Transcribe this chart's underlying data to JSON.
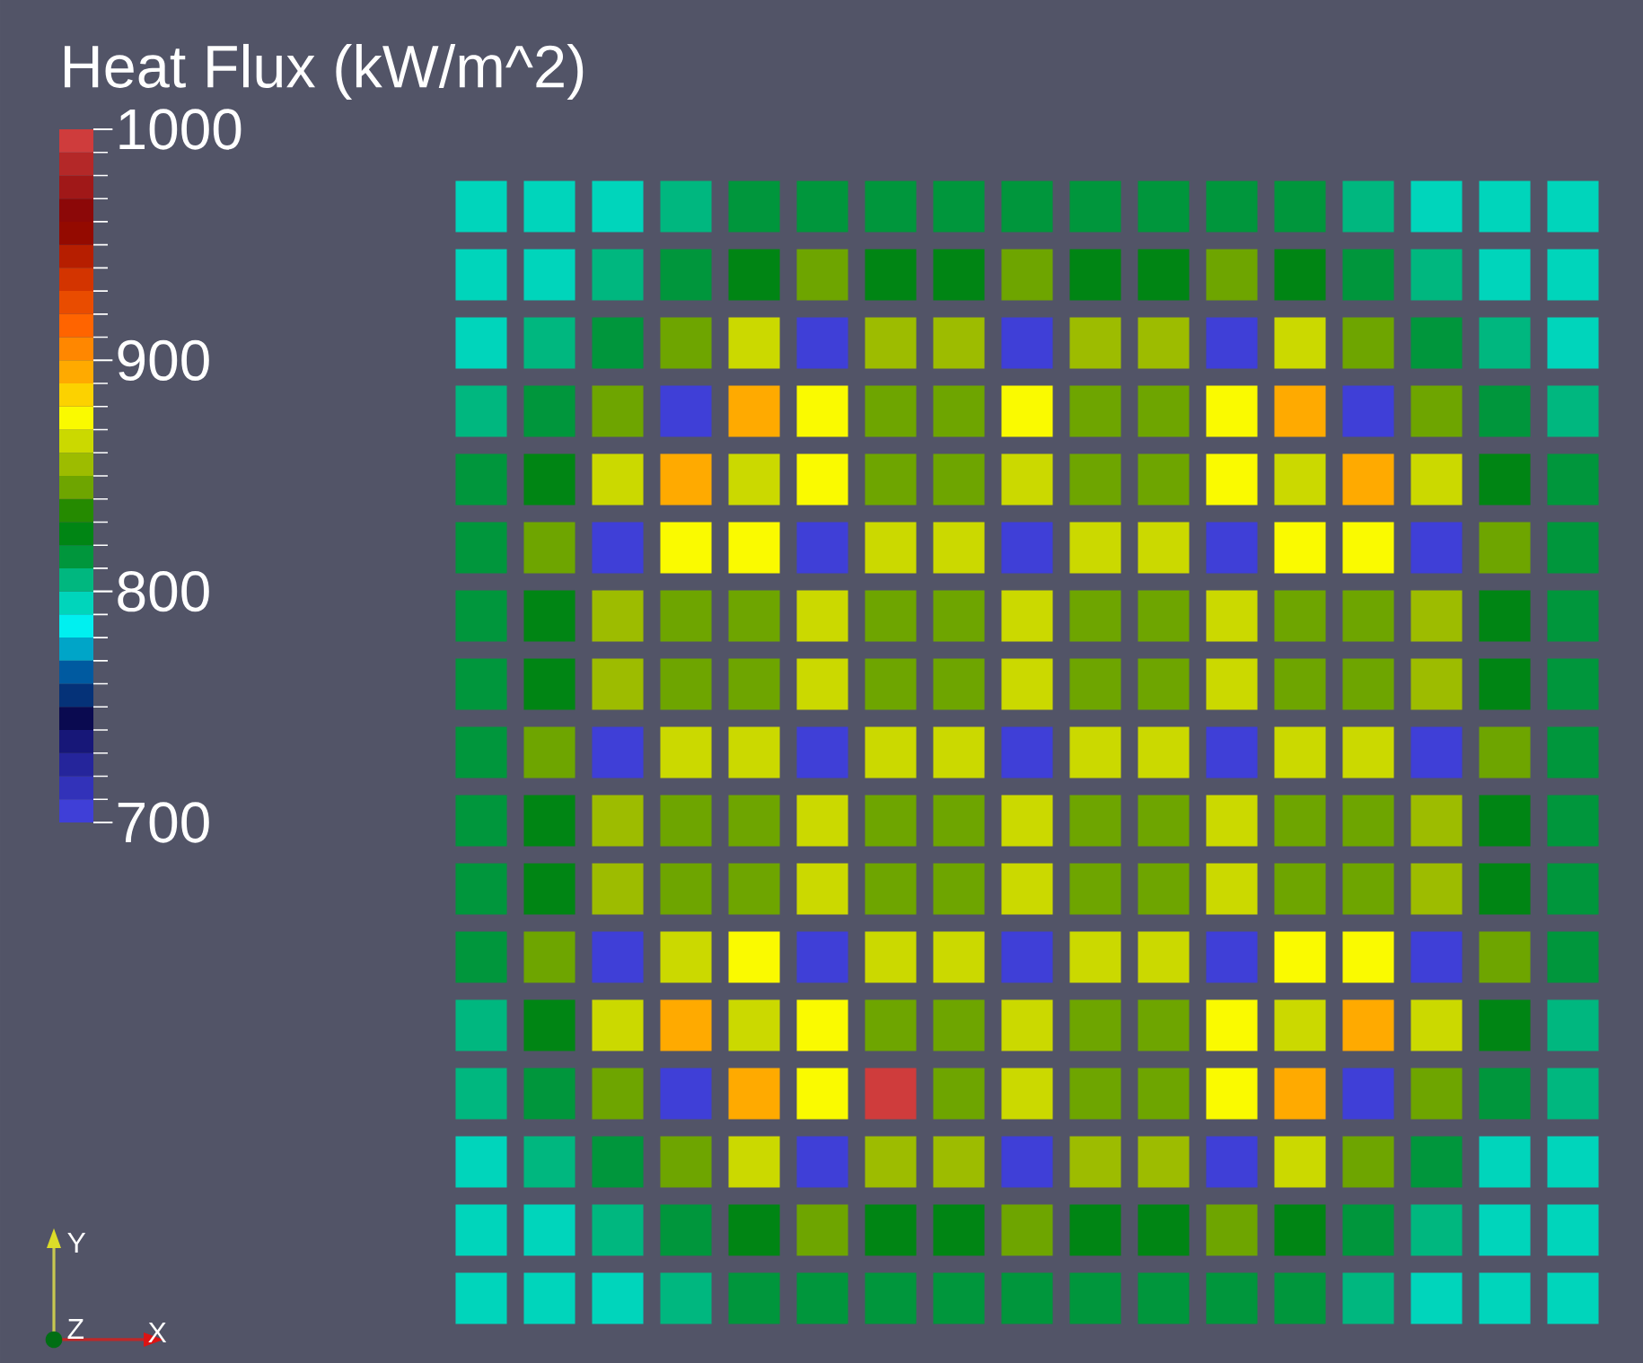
{
  "chart_data": {
    "type": "heatmap",
    "clabel": "Heat Flux (kW/m^2)",
    "categories": [
      null,
      null,
      null,
      null,
      null,
      null,
      null,
      null,
      null,
      null,
      null,
      null,
      null,
      null,
      null,
      null,
      null
    ],
    "y_categories": [
      null,
      null,
      null,
      null,
      null,
      null,
      null,
      null,
      null,
      null,
      null,
      null,
      null,
      null,
      null,
      null,
      null
    ],
    "cells": [
      [
        790,
        790,
        790,
        803,
        815,
        815,
        815,
        815,
        815,
        815,
        815,
        815,
        815,
        803,
        790,
        790,
        790
      ],
      [
        790,
        790,
        803,
        815,
        828,
        845,
        828,
        828,
        845,
        828,
        828,
        845,
        828,
        815,
        803,
        790,
        790
      ],
      [
        790,
        803,
        815,
        845,
        865,
        705,
        855,
        855,
        705,
        855,
        855,
        705,
        865,
        845,
        815,
        803,
        790
      ],
      [
        803,
        815,
        845,
        705,
        890,
        872,
        845,
        845,
        872,
        845,
        845,
        872,
        890,
        705,
        845,
        815,
        803
      ],
      [
        815,
        828,
        865,
        890,
        865,
        872,
        845,
        845,
        865,
        845,
        845,
        872,
        865,
        890,
        865,
        828,
        815
      ],
      [
        815,
        845,
        705,
        872,
        872,
        705,
        865,
        865,
        705,
        865,
        865,
        705,
        872,
        872,
        705,
        845,
        815
      ],
      [
        815,
        828,
        855,
        845,
        845,
        865,
        845,
        845,
        865,
        845,
        845,
        865,
        845,
        845,
        855,
        828,
        815
      ],
      [
        815,
        828,
        855,
        845,
        845,
        865,
        845,
        845,
        865,
        845,
        845,
        865,
        845,
        845,
        855,
        828,
        815
      ],
      [
        815,
        845,
        705,
        865,
        865,
        705,
        865,
        865,
        705,
        865,
        865,
        705,
        865,
        865,
        705,
        845,
        815
      ],
      [
        815,
        828,
        855,
        845,
        845,
        865,
        845,
        845,
        865,
        845,
        845,
        865,
        845,
        845,
        855,
        828,
        815
      ],
      [
        815,
        828,
        855,
        845,
        845,
        865,
        845,
        845,
        865,
        845,
        845,
        865,
        845,
        845,
        855,
        828,
        815
      ],
      [
        815,
        845,
        705,
        865,
        872,
        705,
        865,
        865,
        705,
        865,
        865,
        705,
        872,
        872,
        705,
        845,
        815
      ],
      [
        803,
        828,
        865,
        890,
        865,
        872,
        845,
        845,
        865,
        845,
        845,
        872,
        865,
        890,
        865,
        828,
        803
      ],
      [
        803,
        815,
        845,
        705,
        890,
        872,
        990,
        845,
        865,
        845,
        845,
        872,
        890,
        705,
        845,
        815,
        803
      ],
      [
        790,
        803,
        815,
        845,
        865,
        705,
        855,
        855,
        705,
        855,
        855,
        705,
        865,
        845,
        815,
        790,
        790
      ],
      [
        790,
        790,
        803,
        815,
        828,
        845,
        828,
        828,
        845,
        828,
        828,
        845,
        828,
        815,
        803,
        790,
        790
      ],
      [
        790,
        790,
        790,
        803,
        815,
        815,
        815,
        815,
        815,
        815,
        815,
        815,
        815,
        803,
        790,
        790,
        790
      ]
    ],
    "clim": [
      700,
      1000
    ],
    "cticks": [
      700,
      800,
      900,
      1000
    ],
    "annotations": [
      "Y",
      "Z",
      "X"
    ]
  }
}
